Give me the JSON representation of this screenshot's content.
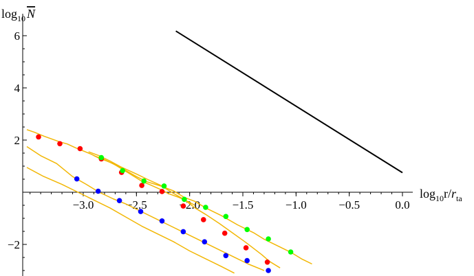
{
  "chart_data": {
    "type": "line",
    "title": "",
    "ylabel": {
      "base": "log",
      "sub": "10",
      "sym": "N"
    },
    "xlabel": {
      "base": "log",
      "sub": "10",
      "sym": "r/",
      "sym2": "r",
      "sub2": "ta"
    },
    "xlim": [
      -3.5,
      0.05
    ],
    "ylim": [
      -3.1,
      6.4
    ],
    "xticks": [
      "-3.0",
      "-2.5",
      "-2.0",
      "-1.5",
      "-1.0",
      "-0.5",
      "0.0"
    ],
    "xtick_values": [
      -3.0,
      -2.5,
      -2.0,
      -1.5,
      -1.0,
      -0.5,
      0.0
    ],
    "yticks": [
      "6",
      "4",
      "2",
      "-2"
    ],
    "ytick_values": [
      6,
      4,
      2,
      -2
    ],
    "colors": {
      "reference": "#000000",
      "track": "#f2b705",
      "red": "#ff0000",
      "green": "#00ff00",
      "blue": "#0000ff"
    },
    "series": [
      {
        "kind": "reference",
        "x": [
          -2.13,
          0.0
        ],
        "y": [
          6.18,
          0.75
        ]
      },
      {
        "kind": "track",
        "x": [
          -3.53,
          -3.46,
          -3.37,
          -3.22,
          -3.15,
          -3.07,
          -2.98,
          -2.92,
          -2.85,
          -2.78,
          -2.72,
          -2.64,
          -2.58,
          -2.5,
          -2.45,
          -2.38,
          -2.27,
          -2.2,
          -2.1,
          -2.02,
          -1.95
        ],
        "y": [
          2.4,
          2.3,
          2.15,
          1.93,
          1.85,
          1.7,
          1.55,
          1.45,
          1.3,
          1.2,
          1.1,
          0.9,
          0.75,
          0.55,
          0.42,
          0.3,
          0.1,
          -0.05,
          -0.2,
          -0.35,
          -0.5
        ]
      },
      {
        "kind": "track",
        "x": [
          -2.95,
          -2.85,
          -2.75,
          -2.65,
          -2.5,
          -2.4,
          -2.28,
          -2.15,
          -2.05,
          -1.95,
          -1.85,
          -1.72,
          -1.6,
          -1.48,
          -1.4,
          -1.32,
          -1.25,
          -1.15
        ],
        "y": [
          1.55,
          1.4,
          1.2,
          0.98,
          0.7,
          0.5,
          0.28,
          -0.05,
          -0.28,
          -0.6,
          -0.85,
          -1.2,
          -1.55,
          -1.9,
          -2.15,
          -2.4,
          -2.65,
          -2.9
        ]
      },
      {
        "kind": "track",
        "x": [
          -2.9,
          -2.8,
          -2.65,
          -2.5,
          -2.4,
          -2.28,
          -2.15,
          -2.05,
          -1.95,
          -1.85,
          -1.7,
          -1.55,
          -1.4,
          -1.3,
          -1.15,
          -1.05,
          -0.95,
          -0.85
        ],
        "y": [
          1.4,
          1.25,
          0.95,
          0.6,
          0.4,
          0.25,
          0.05,
          -0.2,
          -0.35,
          -0.6,
          -0.9,
          -1.25,
          -1.55,
          -1.8,
          -2.1,
          -2.3,
          -2.55,
          -2.75
        ]
      },
      {
        "kind": "track",
        "x": [
          -3.53,
          -3.4,
          -3.25,
          -3.1,
          -2.97,
          -2.85,
          -2.72,
          -2.6,
          -2.45,
          -2.3,
          -2.2,
          -2.05,
          -1.9,
          -1.8,
          -1.65,
          -1.55,
          -1.45,
          -1.3
        ],
        "y": [
          1.75,
          1.4,
          1.1,
          0.6,
          0.3,
          0.0,
          -0.25,
          -0.45,
          -0.75,
          -1.05,
          -1.25,
          -1.55,
          -1.85,
          -2.05,
          -2.35,
          -2.55,
          -2.75,
          -3.0
        ]
      },
      {
        "kind": "track",
        "x": [
          -3.53,
          -3.38,
          -3.2,
          -3.05,
          -2.9,
          -2.75,
          -2.6,
          -2.45,
          -2.3,
          -2.15,
          -2.0,
          -1.85,
          -1.7,
          -1.58
        ],
        "y": [
          0.95,
          0.62,
          0.3,
          0.0,
          -0.3,
          -0.6,
          -0.95,
          -1.3,
          -1.6,
          -1.9,
          -2.25,
          -2.55,
          -2.85,
          -3.1
        ]
      },
      {
        "kind": "red",
        "x": [
          -3.42,
          -3.22,
          -3.03,
          -2.83,
          -2.64,
          -2.45,
          -2.26,
          -2.06,
          -1.87,
          -1.67,
          -1.47,
          -1.27
        ],
        "y": [
          2.12,
          1.86,
          1.67,
          1.28,
          0.76,
          0.26,
          0.03,
          -0.53,
          -1.05,
          -1.57,
          -2.13,
          -2.68
        ]
      },
      {
        "kind": "green",
        "x": [
          -2.83,
          -2.63,
          -2.43,
          -2.24,
          -2.05,
          -1.85,
          -1.66,
          -1.46,
          -1.26,
          -1.05
        ],
        "y": [
          1.33,
          0.83,
          0.43,
          0.24,
          -0.27,
          -0.58,
          -0.93,
          -1.43,
          -1.79,
          -2.29
        ]
      },
      {
        "kind": "blue",
        "x": [
          -3.06,
          -2.86,
          -2.66,
          -2.46,
          -2.26,
          -2.06,
          -1.86,
          -1.66,
          -1.46,
          -1.26
        ],
        "y": [
          0.51,
          0.04,
          -0.32,
          -0.74,
          -1.1,
          -1.51,
          -1.9,
          -2.43,
          -2.62,
          -3.0
        ]
      }
    ]
  }
}
